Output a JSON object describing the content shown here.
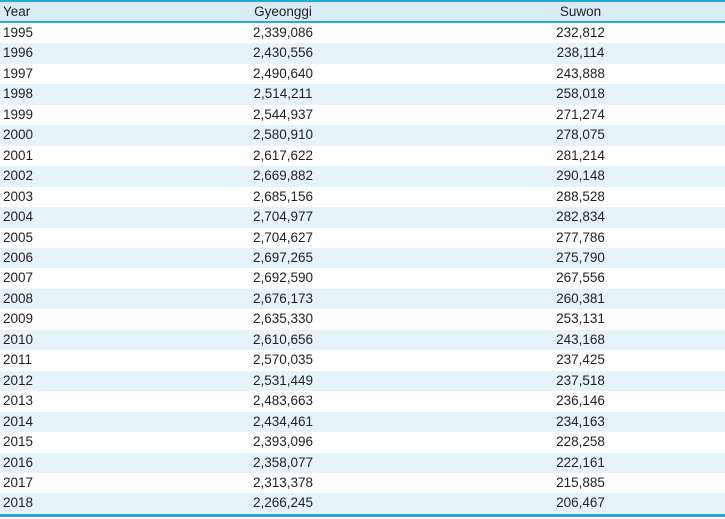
{
  "colors": {
    "accent_blue": "#29a8e0",
    "header_bg": "#d9ecf8",
    "stripe_bg": "#e6f3fb",
    "text": "#231f20"
  },
  "table": {
    "columns": [
      "Year",
      "Gyeonggi",
      "Suwon"
    ],
    "rows": [
      [
        "1995",
        "2,339,086",
        "232,812"
      ],
      [
        "1996",
        "2,430,556",
        "238,114"
      ],
      [
        "1997",
        "2,490,640",
        "243,888"
      ],
      [
        "1998",
        "2,514,211",
        "258,018"
      ],
      [
        "1999",
        "2,544,937",
        "271,274"
      ],
      [
        "2000",
        "2,580,910",
        "278,075"
      ],
      [
        "2001",
        "2,617,622",
        "281,214"
      ],
      [
        "2002",
        "2,669,882",
        "290,148"
      ],
      [
        "2003",
        "2,685,156",
        "288,528"
      ],
      [
        "2004",
        "2,704,977",
        "282,834"
      ],
      [
        "2005",
        "2,704,627",
        "277,786"
      ],
      [
        "2006",
        "2,697,265",
        "275,790"
      ],
      [
        "2007",
        "2,692,590",
        "267,556"
      ],
      [
        "2008",
        "2,676,173",
        "260,381"
      ],
      [
        "2009",
        "2,635,330",
        "253,131"
      ],
      [
        "2010",
        "2,610,656",
        "243,168"
      ],
      [
        "2011",
        "2,570,035",
        "237,425"
      ],
      [
        "2012",
        "2,531,449",
        "237,518"
      ],
      [
        "2013",
        "2,483,663",
        "236,146"
      ],
      [
        "2014",
        "2,434,461",
        "234,163"
      ],
      [
        "2015",
        "2,393,096",
        "228,258"
      ],
      [
        "2016",
        "2,358,077",
        "222,161"
      ],
      [
        "2017",
        "2,313,378",
        "215,885"
      ],
      [
        "2018",
        "2,266,245",
        "206,467"
      ]
    ]
  },
  "chart_data": {
    "type": "table",
    "title": "",
    "categories": [
      "1995",
      "1996",
      "1997",
      "1998",
      "1999",
      "2000",
      "2001",
      "2002",
      "2003",
      "2004",
      "2005",
      "2006",
      "2007",
      "2008",
      "2009",
      "2010",
      "2011",
      "2012",
      "2013",
      "2014",
      "2015",
      "2016",
      "2017",
      "2018"
    ],
    "series": [
      {
        "name": "Gyeonggi",
        "values": [
          2339086,
          2430556,
          2490640,
          2514211,
          2544937,
          2580910,
          2617622,
          2669882,
          2685156,
          2704977,
          2704627,
          2697265,
          2692590,
          2676173,
          2635330,
          2610656,
          2570035,
          2531449,
          2483663,
          2434461,
          2393096,
          2358077,
          2313378,
          2266245
        ]
      },
      {
        "name": "Suwon",
        "values": [
          232812,
          238114,
          243888,
          258018,
          271274,
          278075,
          281214,
          290148,
          288528,
          282834,
          277786,
          275790,
          267556,
          260381,
          253131,
          243168,
          237425,
          237518,
          236146,
          234163,
          228258,
          222161,
          215885,
          206467
        ]
      }
    ]
  }
}
